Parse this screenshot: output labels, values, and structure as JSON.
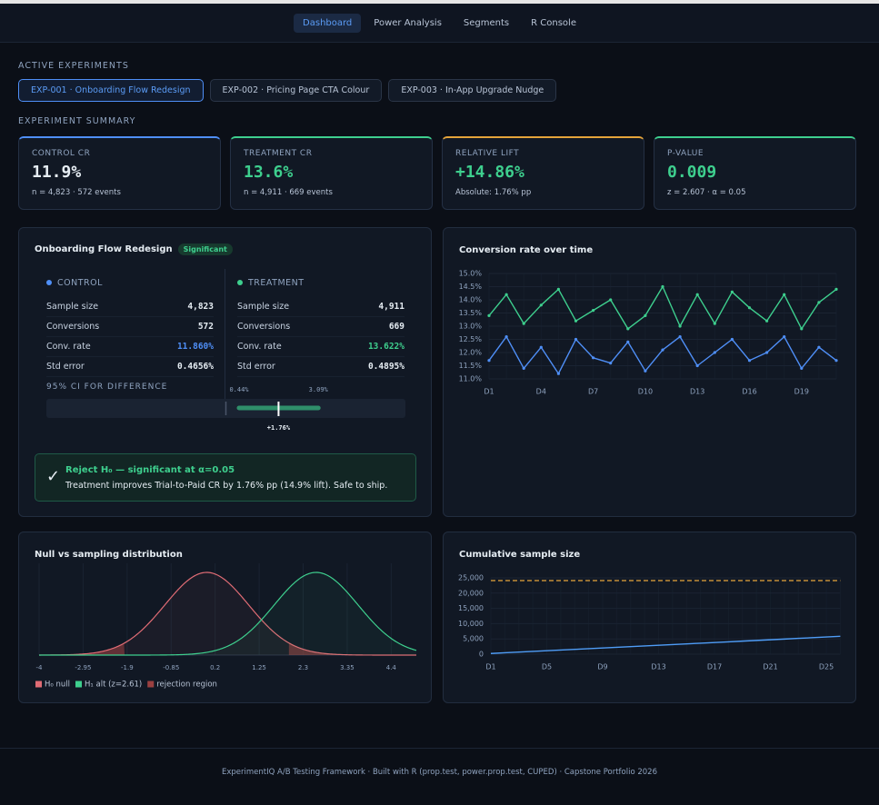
{
  "nav": [
    "Dashboard",
    "Power Analysis",
    "Segments",
    "R Console"
  ],
  "experiments": {
    "heading": "ACTIVE EXPERIMENTS",
    "tabs": [
      "EXP-001 · Onboarding Flow Redesign",
      "EXP-002 · Pricing Page CTA Colour",
      "EXP-003 · In-App Upgrade Nudge"
    ]
  },
  "summary": {
    "heading": "EXPERIMENT SUMMARY",
    "cards": [
      {
        "label": "CONTROL CR",
        "value": "11.9%",
        "note": "n = 4,823 · 572 events",
        "color": "#e6edf3",
        "accent": "#4f8ff7"
      },
      {
        "label": "TREATMENT CR",
        "value": "13.6%",
        "note": "n = 4,911 · 669 events",
        "color": "#3ecf8e",
        "accent": "#3ecf8e"
      },
      {
        "label": "RELATIVE LIFT",
        "value": "+14.86%",
        "note": "Absolute: 1.76% pp",
        "color": "#3ecf8e",
        "accent": "#e5a43a"
      },
      {
        "label": "P-VALUE",
        "value": "0.009",
        "note": "z = 2.607 · α = 0.05",
        "color": "#3ecf8e",
        "accent": "#3ecf8e"
      }
    ]
  },
  "result": {
    "title": "Onboarding Flow Redesign",
    "badge": "Significant",
    "groups": [
      {
        "name": "CONTROL",
        "color": "#4f8ff7",
        "rows": [
          [
            "Sample size",
            "4,823"
          ],
          [
            "Conversions",
            "572"
          ],
          [
            "Conv. rate",
            "11.860%"
          ],
          [
            "Std error",
            "0.4656%"
          ]
        ]
      },
      {
        "name": "TREATMENT",
        "color": "#3ecf8e",
        "rows": [
          [
            "Sample size",
            "4,911"
          ],
          [
            "Conversions",
            "669"
          ],
          [
            "Conv. rate",
            "13.622%"
          ],
          [
            "Std error",
            "0.4895%"
          ]
        ]
      }
    ],
    "ci": {
      "label": "95% CI FOR DIFFERENCE",
      "xlim": [
        -6,
        6
      ],
      "color": "#2f8f6a",
      "low": {
        "value": 0.44,
        "label": "0.44%"
      },
      "high": {
        "value": 3.09,
        "label": "3.09%"
      },
      "point": {
        "value": 1.76,
        "label": "+1.76%"
      }
    },
    "verdict": {
      "icon": "✓",
      "title": "Reject H₀ — significant at α=0.05",
      "text": "Treatment improves Trial-to-Paid CR by 1.76% pp (14.9% lift). Safe to ship."
    }
  },
  "chart_data": [
    {
      "type": "line",
      "title": "Conversion rate over time",
      "categories": [
        "D1",
        null,
        null,
        "D4",
        null,
        null,
        "D7",
        null,
        null,
        "D10",
        null,
        null,
        "D13",
        null,
        null,
        "D16",
        null,
        null,
        "D19",
        null,
        null
      ],
      "series": [
        {
          "color": "#3ecf8e",
          "values": [
            13.4,
            14.2,
            13.1,
            13.8,
            14.4,
            13.2,
            13.6,
            14.0,
            12.9,
            13.4,
            14.5,
            13.0,
            14.2,
            13.1,
            14.3,
            13.7,
            13.2,
            14.2,
            12.9,
            13.9,
            14.4
          ]
        },
        {
          "color": "#4f8ff7",
          "values": [
            11.7,
            12.6,
            11.4,
            12.2,
            11.2,
            12.5,
            11.8,
            11.6,
            12.4,
            11.3,
            12.1,
            12.6,
            11.5,
            12.0,
            12.5,
            11.7,
            12.0,
            12.6,
            11.4,
            12.2,
            11.7
          ]
        }
      ],
      "ylim": [
        11,
        15
      ],
      "yticks": [
        {
          "value": 11,
          "label": "11.0%"
        },
        {
          "value": 11.5,
          "label": "11.5%"
        },
        {
          "value": 12,
          "label": "12.0%"
        },
        {
          "value": 12.5,
          "label": "12.5%"
        },
        {
          "value": 13,
          "label": "13.0%"
        },
        {
          "value": 13.5,
          "label": "13.5%"
        },
        {
          "value": 14,
          "label": "14.0%"
        },
        {
          "value": 14.5,
          "label": "14.5%"
        },
        {
          "value": 15,
          "label": "15.0%"
        }
      ],
      "grid": true,
      "markers": true
    },
    {
      "type": "density",
      "title": "Null vs sampling distribution",
      "xlim": [
        -4,
        5
      ],
      "xticks": [
        -4,
        -2.95,
        -1.9,
        -0.85,
        0.2,
        1.25,
        2.3,
        3.35,
        4.4
      ],
      "series": [
        {
          "name": "H₀ null",
          "color": "#e06c75",
          "mean": 0,
          "sd": 1
        },
        {
          "name": "H₁ alt (z=2.61)",
          "color": "#3ecf8e",
          "mean": 2.61,
          "sd": 1
        }
      ],
      "rejection": {
        "name": "rejection region",
        "color": "#9b4040",
        "critical": 1.96
      },
      "grid": true
    },
    {
      "type": "line",
      "title": "Cumulative sample size",
      "categories": [
        "D1",
        null,
        null,
        null,
        "D5",
        null,
        null,
        null,
        "D9",
        null,
        null,
        null,
        "D13",
        null,
        null,
        null,
        "D17",
        null,
        null,
        null,
        "D21",
        null,
        null,
        null,
        "D25",
        null
      ],
      "series": [
        {
          "color": "#4f9df7",
          "values": [
            225,
            450,
            675,
            900,
            1125,
            1350,
            1575,
            1800,
            2025,
            2250,
            2475,
            2700,
            2925,
            3150,
            3375,
            3600,
            3825,
            4050,
            4275,
            4500,
            4725,
            4950,
            5175,
            5400,
            5625,
            5850
          ]
        }
      ],
      "ylim": [
        0,
        25000
      ],
      "yticks": [
        0,
        {
          "value": 5000,
          "label": "5,000"
        },
        {
          "value": 10000,
          "label": "10,000"
        },
        {
          "value": 15000,
          "label": "15,000"
        },
        {
          "value": 20000,
          "label": "20,000"
        },
        {
          "value": 25000,
          "label": "25,000"
        }
      ],
      "reference": {
        "value": 24100,
        "color": "#e5a43a"
      },
      "grid": true,
      "markers": false
    }
  ],
  "footer": "ExperimentIQ A/B Testing Framework · Built with R (prop.test, power.prop.test, CUPED) · Capstone Portfolio 2026"
}
